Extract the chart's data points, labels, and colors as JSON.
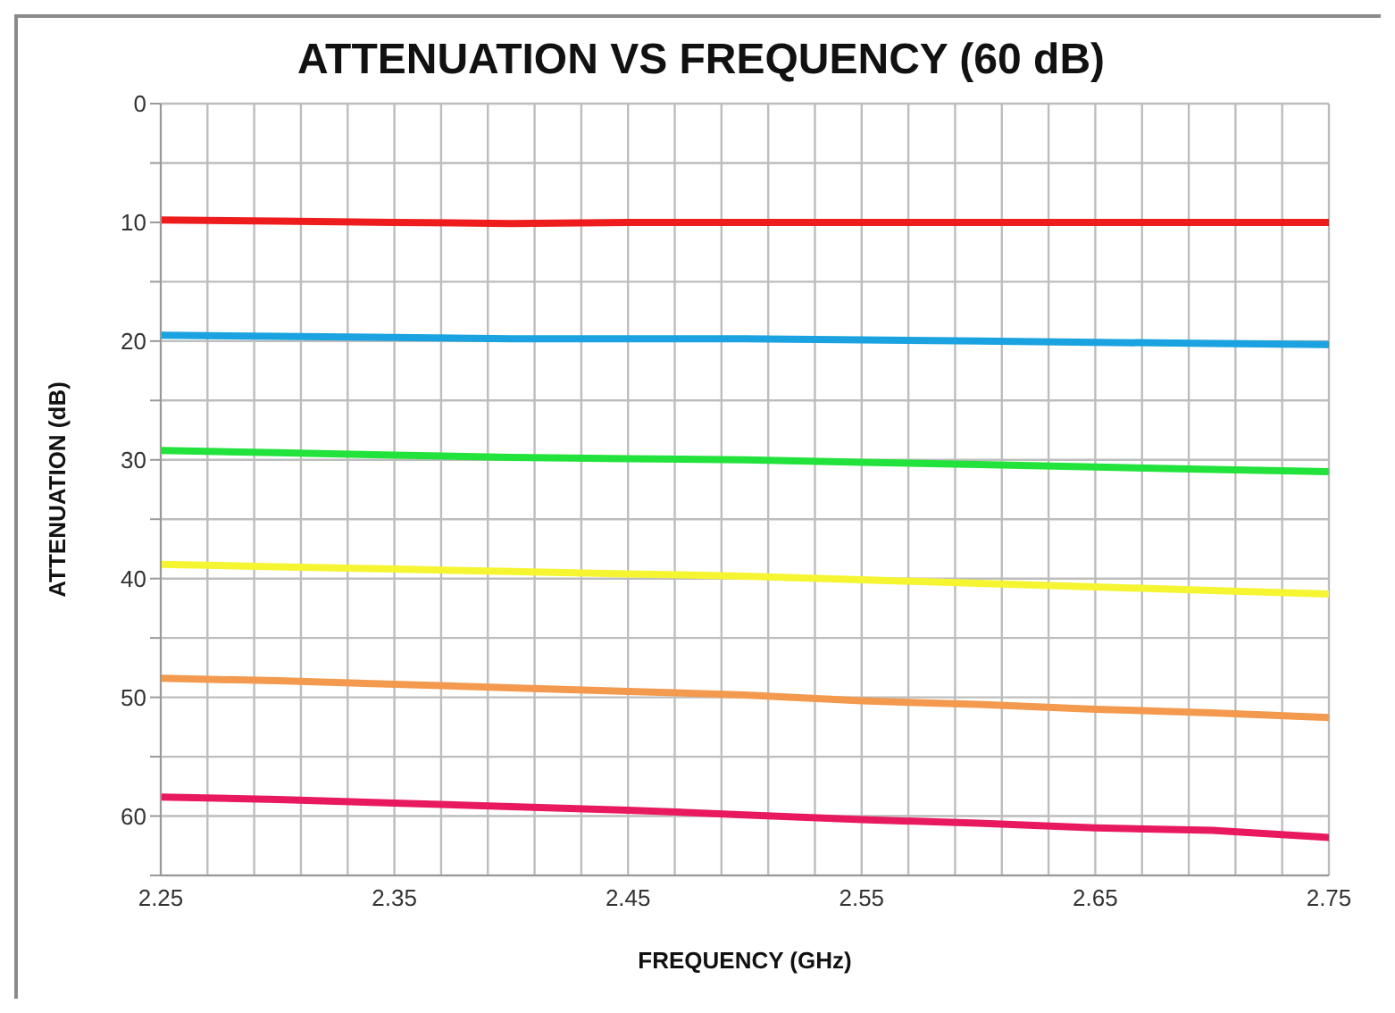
{
  "chart_data": {
    "type": "line",
    "title": "ATTENUATION VS FREQUENCY (60 dB)",
    "xlabel": "FREQUENCY (GHz)",
    "ylabel": "ATTENUATION (dB)",
    "x": [
      2.25,
      2.3,
      2.35,
      2.4,
      2.45,
      2.5,
      2.55,
      2.6,
      2.65,
      2.7,
      2.75
    ],
    "series": [
      {
        "color": "#ee1c1c",
        "values": [
          9.8,
          9.9,
          10.0,
          10.1,
          10.0,
          10.0,
          10.0,
          10.0,
          10.0,
          10.0,
          10.0
        ]
      },
      {
        "color": "#1aa3e0",
        "values": [
          19.5,
          19.6,
          19.7,
          19.8,
          19.8,
          19.8,
          19.9,
          20.0,
          20.1,
          20.2,
          20.3
        ]
      },
      {
        "color": "#22e33c",
        "values": [
          29.2,
          29.4,
          29.6,
          29.8,
          29.9,
          30.0,
          30.2,
          30.4,
          30.6,
          30.8,
          31.0
        ]
      },
      {
        "color": "#f5f531",
        "values": [
          38.8,
          39.0,
          39.2,
          39.4,
          39.6,
          39.8,
          40.1,
          40.4,
          40.7,
          41.0,
          41.3
        ]
      },
      {
        "color": "#f39a4e",
        "values": [
          48.4,
          48.6,
          48.9,
          49.2,
          49.5,
          49.8,
          50.3,
          50.6,
          51.0,
          51.3,
          51.7
        ]
      },
      {
        "color": "#e8195e",
        "values": [
          58.4,
          58.6,
          58.9,
          59.2,
          59.5,
          59.9,
          60.3,
          60.6,
          61.0,
          61.2,
          61.8
        ]
      }
    ],
    "xlim": [
      2.25,
      2.75
    ],
    "xticks": [
      2.25,
      {
        "value": 2.27,
        "label": null
      },
      {
        "value": 2.29,
        "label": null
      },
      {
        "value": 2.31,
        "label": null
      },
      {
        "value": 2.33,
        "label": null
      },
      2.35,
      {
        "value": 2.37,
        "label": null
      },
      {
        "value": 2.39,
        "label": null
      },
      {
        "value": 2.41,
        "label": null
      },
      {
        "value": 2.43,
        "label": null
      },
      2.45,
      {
        "value": 2.47,
        "label": null
      },
      {
        "value": 2.49,
        "label": null
      },
      {
        "value": 2.51,
        "label": null
      },
      {
        "value": 2.53,
        "label": null
      },
      2.55,
      {
        "value": 2.57,
        "label": null
      },
      {
        "value": 2.59,
        "label": null
      },
      {
        "value": 2.61,
        "label": null
      },
      {
        "value": 2.63,
        "label": null
      },
      2.65,
      {
        "value": 2.67,
        "label": null
      },
      {
        "value": 2.69,
        "label": null
      },
      {
        "value": 2.71,
        "label": null
      },
      {
        "value": 2.73,
        "label": null
      },
      2.75
    ],
    "ylim": [
      65,
      0
    ],
    "yticks": [
      0,
      {
        "value": 5,
        "label": null
      },
      10,
      {
        "value": 15,
        "label": null
      },
      20,
      {
        "value": 25,
        "label": null
      },
      30,
      {
        "value": 35,
        "label": null
      },
      40,
      {
        "value": 45,
        "label": null
      },
      50,
      {
        "value": 55,
        "label": null
      },
      60,
      {
        "value": 65,
        "label": null
      }
    ],
    "grid": true,
    "legend": false,
    "marker": "none",
    "line_style": "solid"
  }
}
